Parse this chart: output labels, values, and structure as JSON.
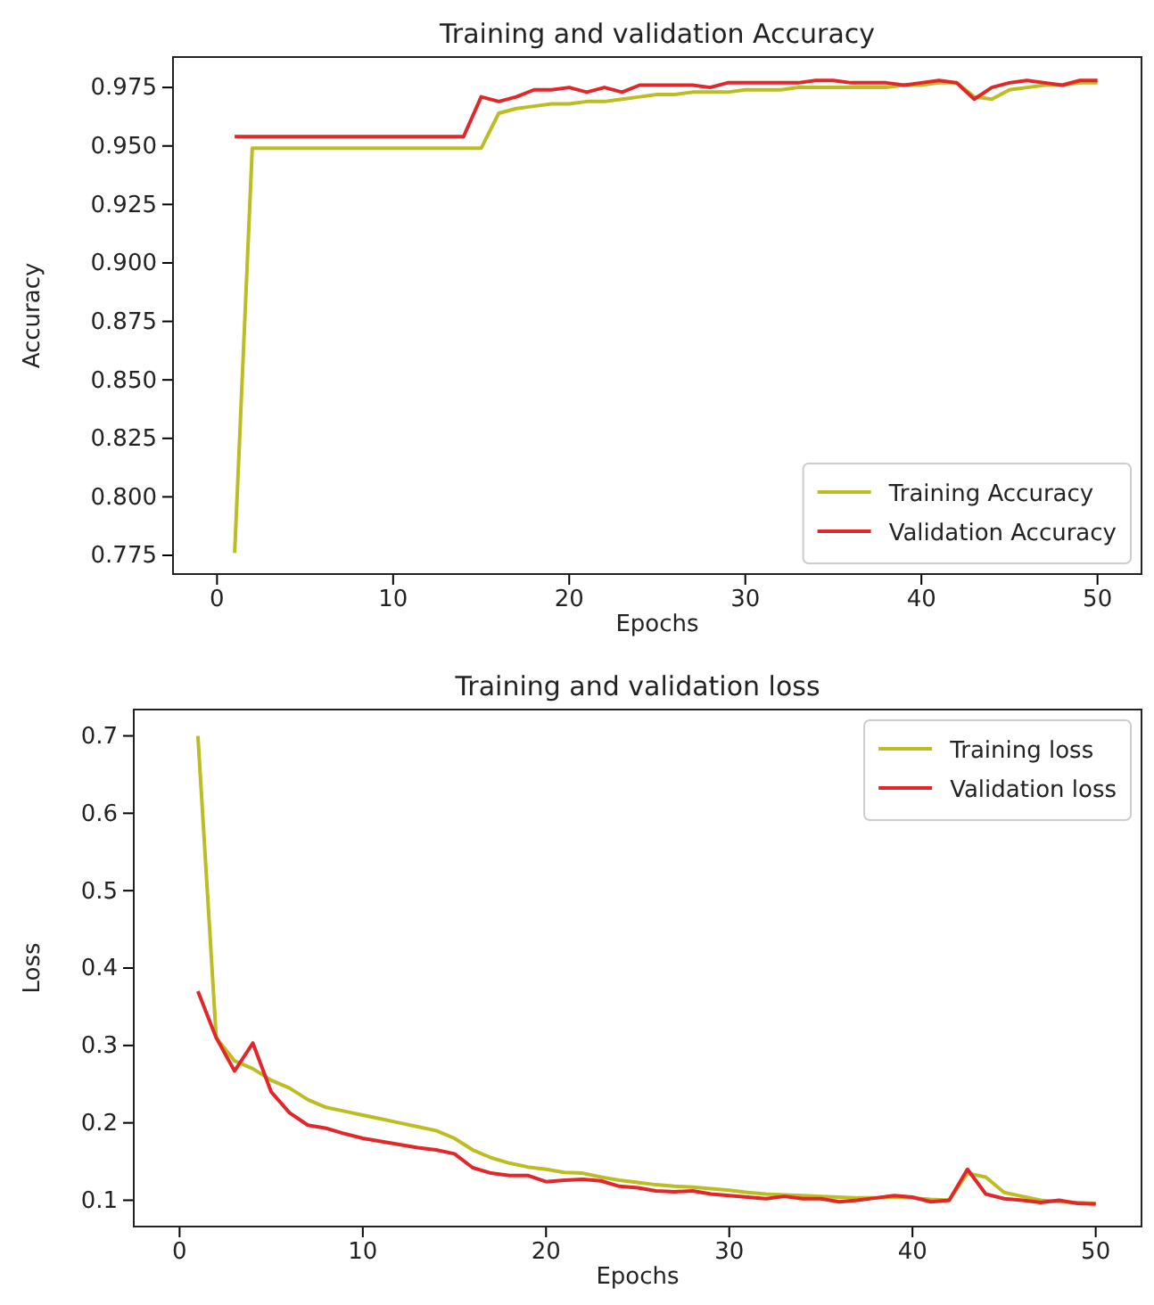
{
  "chart_data": [
    {
      "type": "line",
      "title": "Training and validation Accuracy",
      "xlabel": "Epochs",
      "ylabel": "Accuracy",
      "x": [
        1,
        2,
        3,
        4,
        5,
        6,
        7,
        8,
        9,
        10,
        11,
        12,
        13,
        14,
        15,
        16,
        17,
        18,
        19,
        20,
        21,
        22,
        23,
        24,
        25,
        26,
        27,
        28,
        29,
        30,
        31,
        32,
        33,
        34,
        35,
        36,
        37,
        38,
        39,
        40,
        41,
        42,
        43,
        44,
        45,
        46,
        47,
        48,
        49,
        50
      ],
      "series": [
        {
          "name": "Training Accuracy",
          "color": "#bcbd22",
          "values": [
            0.776,
            0.949,
            0.949,
            0.949,
            0.949,
            0.949,
            0.949,
            0.949,
            0.949,
            0.949,
            0.949,
            0.949,
            0.949,
            0.949,
            0.949,
            0.964,
            0.966,
            0.967,
            0.968,
            0.968,
            0.969,
            0.969,
            0.97,
            0.971,
            0.972,
            0.972,
            0.973,
            0.973,
            0.973,
            0.974,
            0.974,
            0.974,
            0.975,
            0.975,
            0.975,
            0.975,
            0.975,
            0.975,
            0.976,
            0.976,
            0.977,
            0.977,
            0.971,
            0.97,
            0.974,
            0.975,
            0.976,
            0.976,
            0.977,
            0.977
          ]
        },
        {
          "name": "Validation Accuracy",
          "color": "#e0272a",
          "values": [
            0.954,
            0.954,
            0.954,
            0.954,
            0.954,
            0.954,
            0.954,
            0.954,
            0.954,
            0.954,
            0.954,
            0.954,
            0.954,
            0.954,
            0.971,
            0.969,
            0.971,
            0.974,
            0.974,
            0.975,
            0.973,
            0.975,
            0.973,
            0.976,
            0.976,
            0.976,
            0.976,
            0.975,
            0.977,
            0.977,
            0.977,
            0.977,
            0.977,
            0.978,
            0.978,
            0.977,
            0.977,
            0.977,
            0.976,
            0.977,
            0.978,
            0.977,
            0.97,
            0.975,
            0.977,
            0.978,
            0.977,
            0.976,
            0.978,
            0.978
          ]
        }
      ],
      "xlim": [
        -2.5,
        52.5
      ],
      "xticks": [
        0,
        10,
        20,
        30,
        40,
        50
      ],
      "ylim": [
        0.767,
        0.988
      ],
      "yticks": [
        {
          "value": 0.775,
          "label": "0.775"
        },
        {
          "value": 0.8,
          "label": "0.800"
        },
        {
          "value": 0.825,
          "label": "0.825"
        },
        {
          "value": 0.85,
          "label": "0.850"
        },
        {
          "value": 0.875,
          "label": "0.875"
        },
        {
          "value": 0.9,
          "label": "0.900"
        },
        {
          "value": 0.925,
          "label": "0.925"
        },
        {
          "value": 0.95,
          "label": "0.950"
        },
        {
          "value": 0.975,
          "label": "0.975"
        }
      ],
      "legend": "bottom right",
      "grid": false
    },
    {
      "type": "line",
      "title": "Training and validation loss",
      "xlabel": "Epochs",
      "ylabel": "Loss",
      "x": [
        1,
        2,
        3,
        4,
        5,
        6,
        7,
        8,
        9,
        10,
        11,
        12,
        13,
        14,
        15,
        16,
        17,
        18,
        19,
        20,
        21,
        22,
        23,
        24,
        25,
        26,
        27,
        28,
        29,
        30,
        31,
        32,
        33,
        34,
        35,
        36,
        37,
        38,
        39,
        40,
        41,
        42,
        43,
        44,
        45,
        46,
        47,
        48,
        49,
        50
      ],
      "series": [
        {
          "name": "Training loss",
          "color": "#bcbd22",
          "values": [
            0.7,
            0.31,
            0.28,
            0.27,
            0.255,
            0.245,
            0.23,
            0.22,
            0.215,
            0.21,
            0.205,
            0.2,
            0.195,
            0.19,
            0.18,
            0.165,
            0.155,
            0.148,
            0.143,
            0.14,
            0.136,
            0.135,
            0.13,
            0.126,
            0.123,
            0.12,
            0.118,
            0.117,
            0.115,
            0.113,
            0.11,
            0.108,
            0.107,
            0.106,
            0.105,
            0.104,
            0.103,
            0.103,
            0.104,
            0.103,
            0.101,
            0.1,
            0.135,
            0.13,
            0.11,
            0.105,
            0.1,
            0.098,
            0.097,
            0.096
          ]
        },
        {
          "name": "Validation loss",
          "color": "#e0272a",
          "values": [
            0.37,
            0.31,
            0.267,
            0.303,
            0.24,
            0.213,
            0.197,
            0.193,
            0.186,
            0.18,
            0.176,
            0.172,
            0.168,
            0.165,
            0.16,
            0.142,
            0.135,
            0.132,
            0.132,
            0.124,
            0.126,
            0.127,
            0.125,
            0.118,
            0.116,
            0.112,
            0.111,
            0.112,
            0.108,
            0.106,
            0.104,
            0.102,
            0.105,
            0.102,
            0.102,
            0.098,
            0.1,
            0.103,
            0.106,
            0.104,
            0.098,
            0.1,
            0.14,
            0.108,
            0.102,
            0.1,
            0.097,
            0.1,
            0.096,
            0.095
          ]
        }
      ],
      "xlim": [
        -2.5,
        52.5
      ],
      "xticks": [
        0,
        10,
        20,
        30,
        40,
        50
      ],
      "ylim": [
        0.066,
        0.734
      ],
      "yticks": [
        0.1,
        0.2,
        0.3,
        0.4,
        0.5,
        0.6,
        0.7
      ],
      "legend": "top right",
      "grid": false
    }
  ]
}
